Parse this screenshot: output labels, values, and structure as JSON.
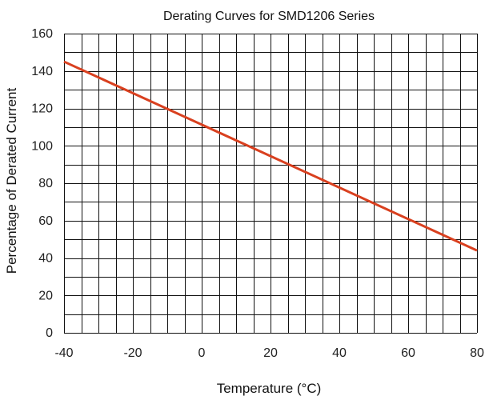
{
  "chart_data": {
    "type": "line",
    "title": "Derating Curves for SMD1206 Series",
    "xlabel": "Temperature (°C)",
    "ylabel": "Percentage of Derated Current",
    "xlim": [
      -40,
      80
    ],
    "ylim": [
      0,
      160
    ],
    "x_ticks": [
      "-40",
      "-20",
      "0",
      "20",
      "40",
      "60",
      "80"
    ],
    "y_ticks": [
      "0",
      "20",
      "40",
      "60",
      "80",
      "100",
      "120",
      "140",
      "160"
    ],
    "grid": true,
    "grid_x_step": 5,
    "grid_y_step": 10,
    "series": [
      {
        "x": [
          -40,
          80
        ],
        "y": [
          145,
          44
        ],
        "color": "#d9401f"
      }
    ]
  }
}
